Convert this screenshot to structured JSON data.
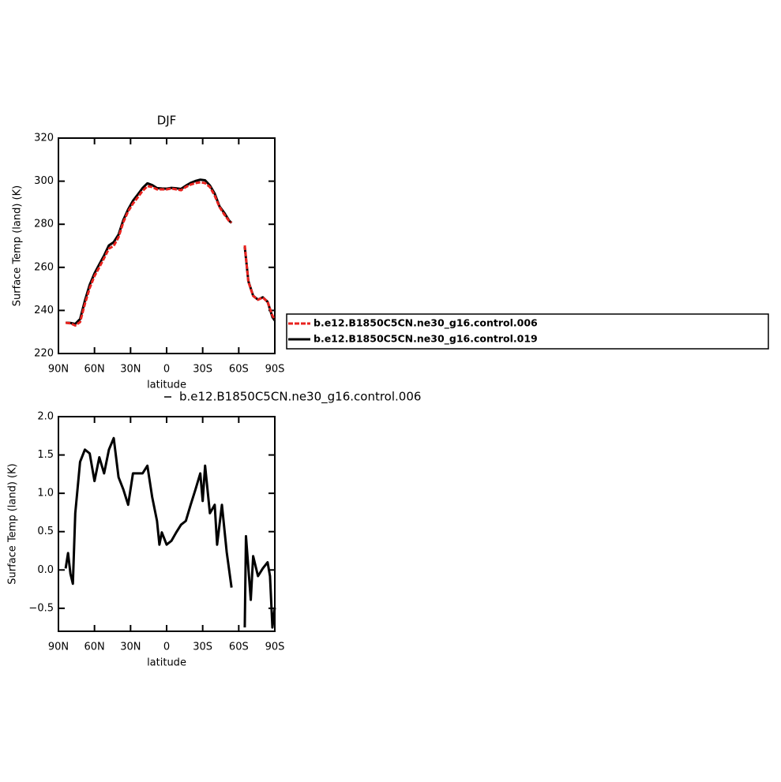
{
  "chart_data": [
    {
      "type": "line",
      "title": "DJF",
      "xlabel": "latitude",
      "ylabel": "Surface Temp (land) (K)",
      "x": [
        84,
        80,
        76,
        72,
        68,
        64,
        60,
        56,
        52,
        48,
        44,
        40,
        36,
        32,
        28,
        24,
        20,
        16,
        12,
        8,
        4,
        0,
        -4,
        -8,
        -12,
        -16,
        -20,
        -24,
        -28,
        -32,
        -36,
        -40,
        -44,
        -48,
        -52,
        -54,
        -58,
        -62,
        -65,
        -68,
        -72,
        -76,
        -80,
        -84,
        -88,
        -90
      ],
      "xlim": [
        90,
        -90
      ],
      "xticks": [
        {
          "value": 90,
          "label": "90N"
        },
        {
          "value": 60,
          "label": "60N"
        },
        {
          "value": 30,
          "label": "30N"
        },
        0,
        {
          "value": -30,
          "label": "30S"
        },
        {
          "value": -60,
          "label": "60S"
        },
        {
          "value": -90,
          "label": "90S"
        }
      ],
      "ylim": [
        220,
        320
      ],
      "yticks": [
        220,
        240,
        260,
        280,
        300,
        320
      ],
      "series": [
        {
          "name": "b.e12.B1850C5CN.ne30_g16.control.019",
          "color": "#000000",
          "linestyle": "solid",
          "values": [
            234.3,
            234.2,
            233.7,
            236,
            244.5,
            251.9,
            257.2,
            261.4,
            265.5,
            270.2,
            271.7,
            275.2,
            282,
            286.9,
            290.9,
            293.8,
            296.8,
            299,
            298.2,
            296.8,
            296.6,
            296.5,
            296.9,
            296.7,
            296.4,
            297.9,
            299.2,
            300.1,
            300.7,
            300.4,
            298,
            294.2,
            288.3,
            285.3,
            281.7,
            280.6,
            null,
            null,
            269.5,
            253.6,
            246.8,
            245,
            246.1,
            244,
            236.9,
            235.3
          ]
        },
        {
          "name": "b.e12.B1850C5CN.ne30_g16.control.006",
          "color": "#e8221e",
          "linestyle": "dashed",
          "values": [
            234.3,
            234,
            233,
            234.6,
            243,
            250.4,
            256,
            260,
            264.3,
            268.7,
            270,
            274,
            281,
            286,
            289.6,
            292.5,
            295.5,
            297.7,
            297.3,
            296.2,
            296.2,
            296.2,
            296.6,
            296.2,
            295.8,
            297.3,
            298.4,
            299.1,
            299.5,
            299.1,
            297.3,
            293.3,
            288,
            284.5,
            281.5,
            280.8,
            null,
            null,
            270.2,
            253.3,
            246.7,
            245,
            246,
            244,
            237.6,
            235.8
          ]
        }
      ]
    },
    {
      "type": "line",
      "xlabel": "latitude",
      "ylabel": "Surface Temp (land) (K)",
      "x": [
        84,
        82,
        80,
        78,
        76,
        72,
        68,
        64,
        60,
        56,
        52,
        48,
        44,
        40,
        36,
        32,
        28,
        24,
        20,
        16,
        12,
        8,
        6,
        4,
        0,
        -4,
        -8,
        -12,
        -16,
        -20,
        -24,
        -28,
        -30,
        -32,
        -36,
        -40,
        -42,
        -46,
        -50,
        -54,
        -58,
        -62,
        -65,
        -66,
        -70,
        -72,
        -76,
        -80,
        -84,
        -86,
        -88,
        -90
      ],
      "xlim": [
        90,
        -90
      ],
      "xticks": [
        {
          "value": 90,
          "label": "90N"
        },
        {
          "value": 60,
          "label": "60N"
        },
        {
          "value": 30,
          "label": "30N"
        },
        0,
        {
          "value": -30,
          "label": "30S"
        },
        {
          "value": -60,
          "label": "60S"
        },
        {
          "value": -90,
          "label": "90S"
        }
      ],
      "ylim": [
        -0.8,
        2.0
      ],
      "yticks": [
        {
          "value": -0.5,
          "label": "−0.5"
        },
        {
          "value": 0,
          "label": "0.0"
        },
        0.5,
        {
          "value": 1,
          "label": "1.0"
        },
        1.5,
        {
          "value": 2,
          "label": "2.0"
        }
      ],
      "series": [
        {
          "name": "b.e12.B1850C5CN.ne30_g16.control.006",
          "color": "#000000",
          "linestyle": "solid",
          "values": [
            0.02,
            0.22,
            -0.05,
            -0.18,
            0.74,
            1.41,
            1.57,
            1.52,
            1.16,
            1.47,
            1.26,
            1.57,
            1.72,
            1.21,
            1.05,
            0.85,
            1.26,
            1.26,
            1.26,
            1.36,
            0.95,
            0.64,
            0.33,
            0.49,
            0.33,
            0.38,
            0.49,
            0.59,
            0.64,
            0.85,
            1.05,
            1.26,
            0.9,
            1.36,
            0.74,
            0.85,
            0.33,
            0.85,
            0.23,
            -0.23,
            null,
            null,
            -0.75,
            0.44,
            -0.39,
            0.18,
            -0.08,
            0.02,
            0.1,
            -0.08,
            -0.75,
            -0.49
          ]
        }
      ]
    }
  ]
}
